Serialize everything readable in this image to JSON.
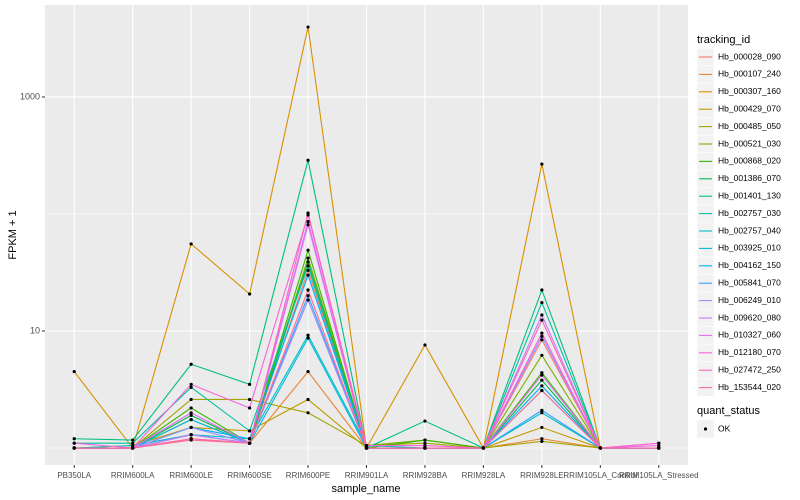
{
  "chart_data": {
    "type": "line",
    "x_label": "sample_name",
    "y_label": "FPKM + 1",
    "log_y": true,
    "grid": true,
    "categories": [
      "PB350LA",
      "RRIM600LA",
      "RRIM600LE",
      "RRIM600SE",
      "RRIM600PE",
      "RRIM901LA",
      "RRIM928BA",
      "RRIM928LA",
      "RRIM928LE",
      "RRIM105LA_Control",
      "RRIM105LA_Stressed"
    ],
    "ylim": [
      0.716,
      6110
    ],
    "yticks": [
      10,
      1000
    ],
    "legend_title": "tracking_id",
    "point_color": "#000000",
    "point_legend": {
      "title": "quant_status",
      "labels": [
        "OK"
      ]
    },
    "series": [
      {
        "name": "Hb_000028_090",
        "color": "#F8766D",
        "values": [
          1,
          1,
          1.3,
          1.1,
          33,
          1,
          1,
          1,
          8.4,
          1,
          1.1
        ]
      },
      {
        "name": "Hb_000107_240",
        "color": "#EA8331",
        "values": [
          1,
          1,
          1.2,
          1.1,
          4.5,
          1,
          1,
          1,
          1.2,
          1,
          1
        ]
      },
      {
        "name": "Hb_000307_160",
        "color": "#D89000",
        "values": [
          4.5,
          1,
          55.5,
          20.7,
          3960,
          1,
          7.6,
          1,
          267,
          1,
          1
        ]
      },
      {
        "name": "Hb_000429_070",
        "color": "#C09B00",
        "values": [
          1,
          1.05,
          1.5,
          1.4,
          2.6,
          1,
          1,
          1,
          1.5,
          1,
          1
        ]
      },
      {
        "name": "Hb_000485_050",
        "color": "#A3A500",
        "values": [
          1,
          1,
          2.6,
          2.6,
          2.0,
          1.05,
          1.1,
          1,
          1.14,
          1,
          1
        ]
      },
      {
        "name": "Hb_000521_030",
        "color": "#7CAE00",
        "values": [
          1,
          1,
          1.75,
          1.1,
          42,
          1.05,
          1.17,
          1,
          6.2,
          1,
          1
        ]
      },
      {
        "name": "Hb_000868_020",
        "color": "#39B600",
        "values": [
          1,
          1,
          2.2,
          1.1,
          49,
          1,
          1.17,
          1,
          4.4,
          1,
          1
        ]
      },
      {
        "name": "Hb_001386_070",
        "color": "#00BB4E",
        "values": [
          1,
          1,
          1.9,
          1.1,
          39,
          1,
          1,
          1,
          3.8,
          1,
          1
        ]
      },
      {
        "name": "Hb_001401_130",
        "color": "#00BF7D",
        "values": [
          1.2,
          1.17,
          5.2,
          3.5,
          288,
          1,
          1.7,
          1,
          22.4,
          1,
          1
        ]
      },
      {
        "name": "Hb_002757_030",
        "color": "#00C1A3",
        "values": [
          1.1,
          1.1,
          3.3,
          1.4,
          36,
          1,
          1,
          1,
          17.5,
          1,
          1
        ]
      },
      {
        "name": "Hb_002757_040",
        "color": "#00BFC4",
        "values": [
          1,
          1.05,
          1.3,
          1.2,
          9.2,
          1.05,
          1,
          1,
          2.0,
          1,
          1
        ]
      },
      {
        "name": "Hb_003925_010",
        "color": "#00BAE0",
        "values": [
          1,
          1,
          1.75,
          1.1,
          8.7,
          1,
          1,
          1,
          3.1,
          1,
          1
        ]
      },
      {
        "name": "Hb_004162_150",
        "color": "#00B0F6",
        "values": [
          1,
          1,
          1.5,
          1.2,
          30,
          1,
          1,
          1,
          3.4,
          1,
          1
        ]
      },
      {
        "name": "Hb_005841_070",
        "color": "#35A2FF",
        "values": [
          1,
          1,
          1.3,
          1.1,
          20,
          1,
          1,
          1,
          2.1,
          1,
          1
        ]
      },
      {
        "name": "Hb_006249_010",
        "color": "#9590FF",
        "values": [
          1,
          1,
          1.5,
          1.1,
          18.4,
          1,
          1,
          1,
          9.0,
          1,
          1
        ]
      },
      {
        "name": "Hb_009620_080",
        "color": "#C77CFF",
        "values": [
          1,
          1,
          1.3,
          1.1,
          86,
          1,
          1,
          1,
          13.7,
          1,
          1
        ]
      },
      {
        "name": "Hb_010327_060",
        "color": "#E76BF3",
        "values": [
          1,
          1,
          2.0,
          1.1,
          81,
          1,
          1,
          1,
          4.2,
          1,
          1.05
        ]
      },
      {
        "name": "Hb_012180_070",
        "color": "#FA62DB",
        "values": [
          1.1,
          1,
          3.5,
          2.2,
          98,
          1.05,
          1.05,
          1,
          9.6,
          1,
          1.1
        ]
      },
      {
        "name": "Hb_027472_250",
        "color": "#FF62BC",
        "values": [
          1,
          1,
          1.2,
          1.1,
          102,
          1,
          1,
          1,
          12.4,
          1,
          1
        ]
      },
      {
        "name": "Hb_153544_020",
        "color": "#FF6C91",
        "values": [
          1,
          1,
          1.17,
          1.1,
          22.4,
          1,
          1,
          1,
          3.1,
          1,
          1
        ]
      }
    ]
  }
}
